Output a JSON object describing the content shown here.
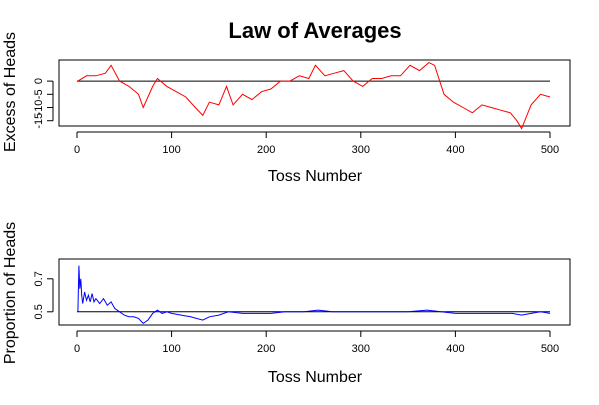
{
  "chart_data": {
    "title": "Law of Averages",
    "charts": [
      {
        "type": "line",
        "xlabel": "Toss Number",
        "ylabel": "Excess of Heads",
        "xlim": [
          0,
          500
        ],
        "ylim": [
          -17,
          8
        ],
        "xticks": [
          0,
          100,
          200,
          300,
          400,
          500
        ],
        "yticks": [
          -15,
          -10,
          -5,
          0
        ],
        "xtick_labels": [
          "0",
          "100",
          "200",
          "300",
          "400",
          "500"
        ],
        "ytick_labels": [
          "-15",
          "-10",
          "-5",
          "0"
        ],
        "reference_line": 0,
        "grid": false,
        "series": [
          {
            "color": "#ff0000",
            "x": [
              1,
              10,
              20,
              30,
              36,
              45,
              55,
              65,
              70,
              80,
              85,
              95,
              105,
              115,
              125,
              133,
              140,
              150,
              158,
              165,
              175,
              185,
              195,
              205,
              215,
              225,
              235,
              245,
              252,
              262,
              272,
              282,
              292,
              302,
              312,
              322,
              332,
              342,
              352,
              362,
              372,
              378,
              388,
              398,
              408,
              418,
              428,
              438,
              448,
              458,
              465,
              470,
              480,
              490,
              500
            ],
            "y": [
              0,
              2,
              2,
              3,
              6,
              0,
              -2,
              -5,
              -10,
              -2,
              1,
              -2,
              -4,
              -6,
              -10,
              -13,
              -8,
              -9,
              -2,
              -9,
              -5,
              -7,
              -4,
              -3,
              0,
              0,
              2,
              1,
              6,
              2,
              3,
              4,
              0,
              -2,
              1,
              1,
              2,
              2,
              6,
              4,
              7,
              6,
              -5,
              -8,
              -10,
              -12,
              -9,
              -10,
              -11,
              -12,
              -15,
              -18,
              -9,
              -5,
              -6
            ]
          }
        ]
      },
      {
        "type": "line",
        "xlabel": "Toss Number",
        "ylabel": "Proportion of Heads",
        "xlim": [
          0,
          500
        ],
        "ylim": [
          0.42,
          0.82
        ],
        "xticks": [
          0,
          100,
          200,
          300,
          400,
          500
        ],
        "yticks": [
          0.5,
          0.7
        ],
        "xtick_labels": [
          "0",
          "100",
          "200",
          "300",
          "400",
          "500"
        ],
        "ytick_labels": [
          "0.5",
          "0.7"
        ],
        "reference_line": 0.5,
        "grid": false,
        "series": [
          {
            "color": "#0000ff",
            "x": [
              1,
              2,
              3,
              4,
              5,
              6,
              8,
              10,
              12,
              14,
              16,
              18,
              20,
              24,
              28,
              32,
              36,
              40,
              45,
              50,
              55,
              60,
              65,
              70,
              75,
              80,
              85,
              90,
              95,
              100,
              110,
              120,
              133,
              140,
              150,
              160,
              175,
              190,
              205,
              220,
              240,
              255,
              270,
              290,
              310,
              330,
              350,
              370,
              385,
              400,
              420,
              440,
              460,
              470,
              480,
              490,
              500
            ],
            "y": [
              0.5,
              0.78,
              0.64,
              0.7,
              0.6,
              0.55,
              0.62,
              0.57,
              0.6,
              0.56,
              0.61,
              0.56,
              0.58,
              0.55,
              0.58,
              0.54,
              0.56,
              0.52,
              0.5,
              0.48,
              0.47,
              0.47,
              0.46,
              0.43,
              0.45,
              0.49,
              0.51,
              0.49,
              0.5,
              0.49,
              0.48,
              0.47,
              0.45,
              0.47,
              0.48,
              0.5,
              0.49,
              0.49,
              0.49,
              0.5,
              0.5,
              0.51,
              0.5,
              0.5,
              0.5,
              0.5,
              0.5,
              0.51,
              0.5,
              0.49,
              0.49,
              0.49,
              0.49,
              0.48,
              0.49,
              0.5,
              0.49
            ]
          }
        ]
      }
    ]
  }
}
